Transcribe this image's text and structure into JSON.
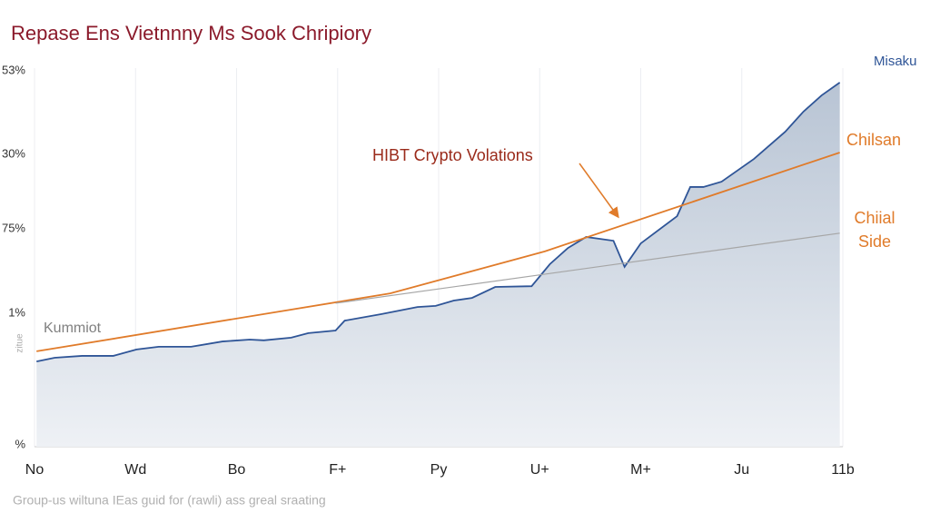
{
  "chart_data": {
    "type": "line",
    "title": "Repase Ens Vietnnny Ms Sook Chripiory",
    "footer": "Group-us wiltuna IEas guid for (rawli) ass greal sraating",
    "y_axis_labels": [
      "53%",
      "30%",
      "75%",
      "1%",
      "%"
    ],
    "y_axis_title": "zitue",
    "annotations": [
      "HIBT Crypto Volations",
      "Kummiot"
    ],
    "xlim": [
      0,
      8
    ],
    "xticks": [
      {
        "value": 0,
        "label": "No"
      },
      {
        "value": 1,
        "label": "Wd"
      },
      {
        "value": 2,
        "label": "Bo"
      },
      {
        "value": 3,
        "label": "F+"
      },
      {
        "value": 4,
        "label": "Py"
      },
      {
        "value": 5,
        "label": "U+"
      },
      {
        "value": 6,
        "label": "M+"
      },
      {
        "value": 7,
        "label": "Ju"
      },
      {
        "value": 8,
        "label": "11b"
      }
    ],
    "ylim": [
      0,
      100
    ],
    "grid": true,
    "series": [
      {
        "name": "Misaku",
        "color": "#2f5597",
        "area": true,
        "x": [
          0.02,
          0.2,
          0.47,
          0.78,
          1.01,
          1.23,
          1.55,
          1.86,
          2.13,
          2.27,
          2.54,
          2.71,
          2.98,
          3.07,
          3.43,
          3.79,
          3.97,
          4.15,
          4.33,
          4.56,
          4.92,
          5.1,
          5.28,
          5.46,
          5.73,
          5.84,
          6.0,
          6.36,
          6.49,
          6.62,
          6.8,
          7.12,
          7.43,
          7.61,
          7.79,
          7.97
        ],
        "values": [
          22.5,
          23.5,
          24,
          24,
          25.7,
          26.4,
          26.4,
          27.8,
          28.3,
          28.1,
          28.8,
          30,
          30.7,
          33.3,
          35,
          36.9,
          37.2,
          38.6,
          39.3,
          42.2,
          42.4,
          48.2,
          52.5,
          55.4,
          54.4,
          47.5,
          53.7,
          60.9,
          68.6,
          68.6,
          70,
          76,
          83.2,
          88.5,
          92.8,
          96.2
        ]
      },
      {
        "name": "Chilsan",
        "color": "#e07b2a",
        "x": [
          0.02,
          3.52,
          5.05,
          7.97
        ],
        "values": [
          25.2,
          40.5,
          51.6,
          77.7
        ]
      },
      {
        "name": "Chiial Side",
        "color": "#a6a6a6",
        "label_color": "#e07b2a",
        "x": [
          2.98,
          7.97
        ],
        "values": [
          37.9,
          56.4
        ]
      }
    ]
  }
}
